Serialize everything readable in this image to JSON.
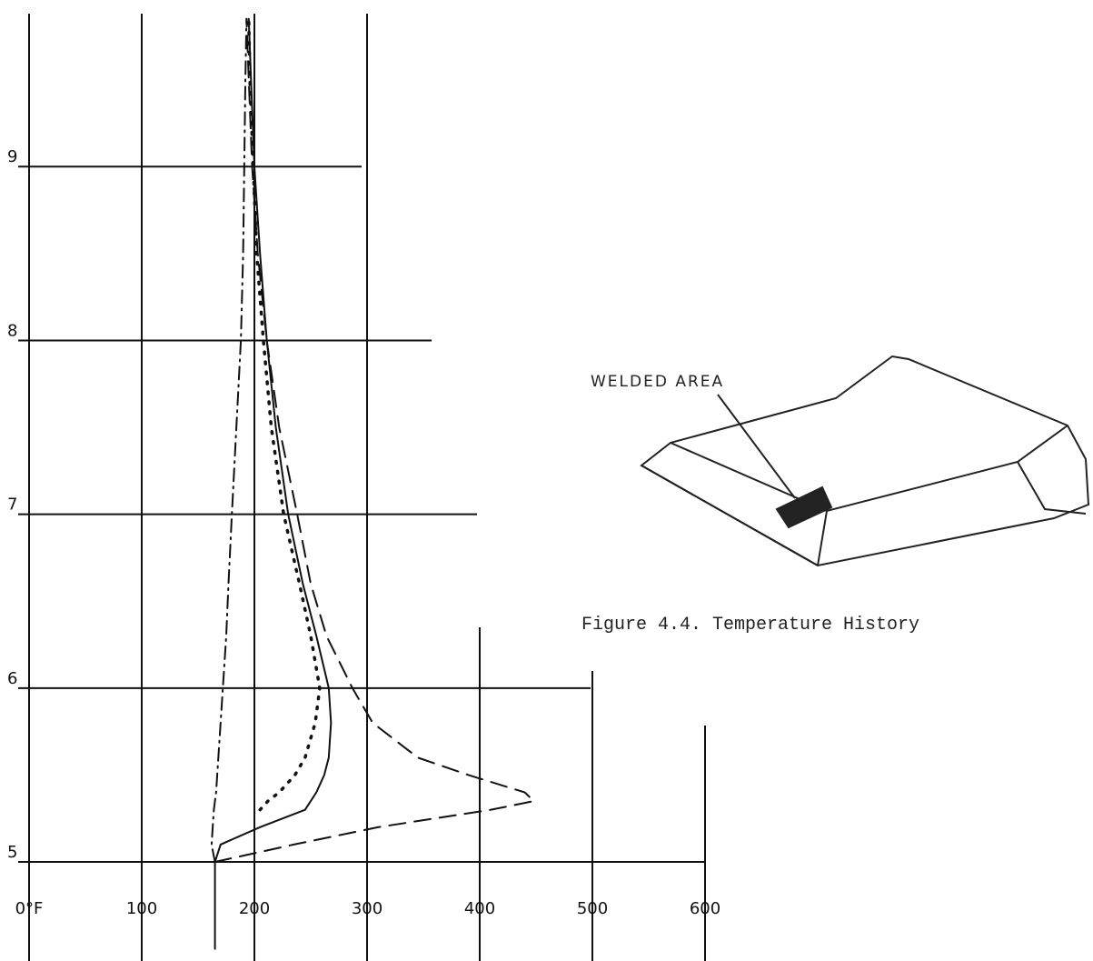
{
  "chart_data": {
    "type": "line",
    "caption": "Figure 4.4.  Temperature History",
    "annotation": "WELDED AREA",
    "x": [
      4.5,
      5.0,
      5.1,
      5.2,
      5.3,
      5.35,
      5.4,
      5.5,
      5.6,
      5.8,
      6.0,
      6.3,
      6.6,
      7.0,
      7.5,
      8.0,
      8.5,
      9.0,
      9.5,
      9.85
    ],
    "series": [
      {
        "color": "#111111",
        "style": "solid",
        "values": [
          165,
          165,
          170,
          205,
          245,
          250,
          255,
          262,
          266,
          268,
          266,
          255,
          243,
          230,
          219,
          211,
          205,
          200,
          197,
          195
        ]
      },
      {
        "color": "#111111",
        "style": "dotted",
        "values": [
          null,
          null,
          null,
          null,
          205,
          212,
          222,
          236,
          245,
          254,
          258,
          250,
          240,
          226,
          215,
          208,
          202,
          199,
          196,
          195
        ]
      },
      {
        "color": "#111111",
        "style": "dashed",
        "values": [
          null,
          165,
          235,
          310,
          410,
          448,
          440,
          390,
          345,
          305,
          287,
          264,
          250,
          238,
          222,
          211,
          203,
          198,
          195,
          193
        ]
      },
      {
        "color": "#111111",
        "style": "dashdot",
        "values": [
          null,
          165,
          162,
          163,
          164,
          165,
          166,
          167,
          168,
          170,
          172,
          175,
          177,
          180,
          184,
          188,
          190,
          191,
          192,
          193
        ]
      }
    ],
    "xlim": [
      0,
      620
    ],
    "ylim": [
      4.43,
      9.88
    ],
    "xticks": [
      {
        "value": 0,
        "label": "0°F"
      },
      100,
      200,
      300,
      400,
      500,
      600
    ],
    "yticks": [
      5,
      6,
      7,
      8,
      9
    ],
    "grid": true
  }
}
